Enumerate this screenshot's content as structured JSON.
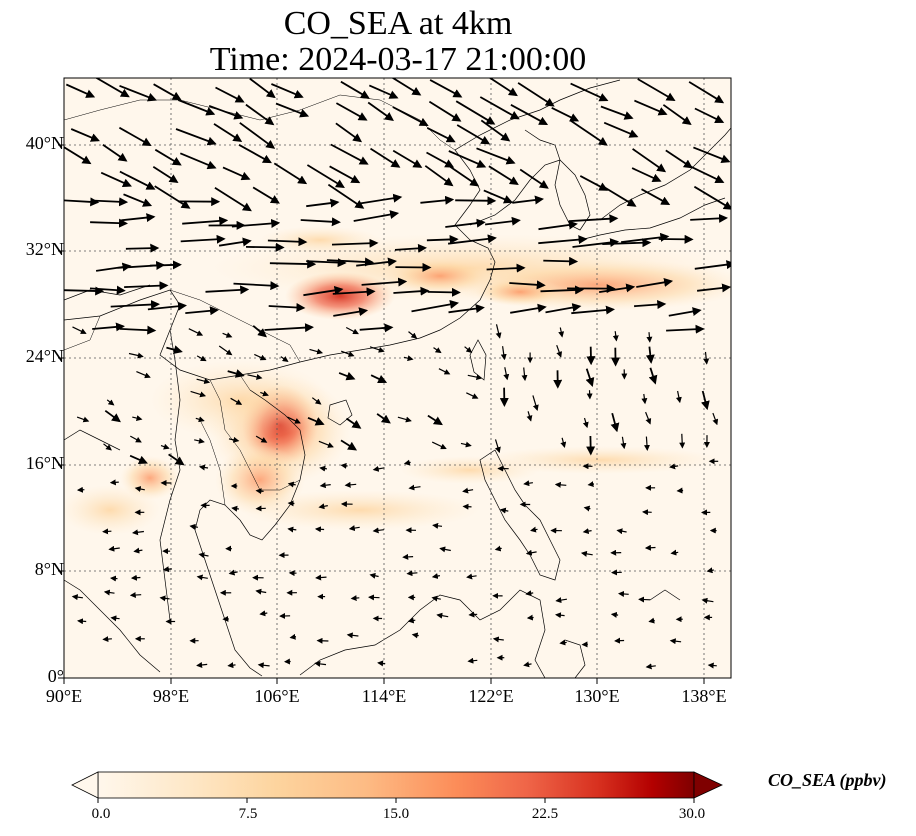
{
  "title": {
    "line1": "CO_SEA at 4km",
    "line2": "Time: 2024-03-17 21:00:00"
  },
  "axes": {
    "lon_ticks": [
      "90°E",
      "98°E",
      "106°E",
      "114°E",
      "122°E",
      "130°E",
      "138°E"
    ],
    "lat_ticks": [
      "0°",
      "8°N",
      "16°N",
      "24°N",
      "32°N",
      "40°N"
    ],
    "lon_range": [
      90,
      140
    ],
    "lat_range": [
      0,
      45
    ],
    "gridlines": "dotted"
  },
  "colorbar": {
    "label": "CO_SEA (ppbv)",
    "ticks": [
      "0.0",
      "7.5",
      "15.0",
      "22.5",
      "30.0"
    ],
    "range": [
      0,
      30
    ],
    "colormap": "OrRd",
    "extend": "both"
  },
  "colors": {
    "background_low": "#fff7ec",
    "high": "#7f0000"
  }
}
